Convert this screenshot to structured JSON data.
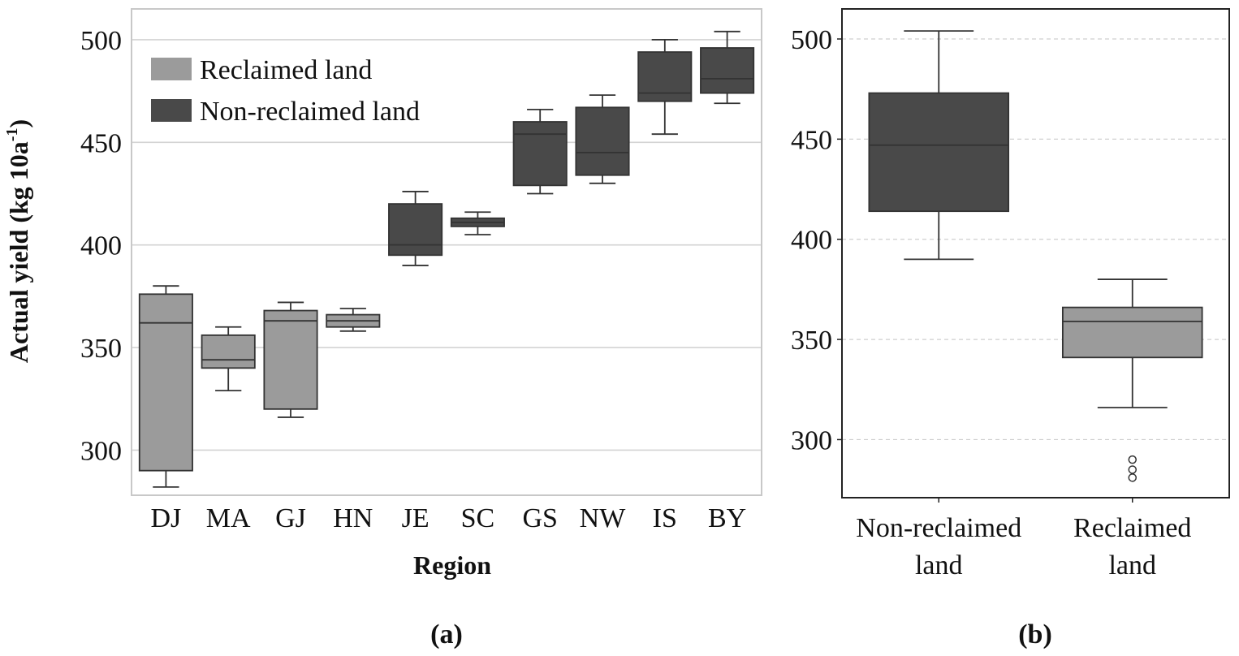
{
  "colors": {
    "reclaimed": "#9b9b9b",
    "non_reclaimed": "#494949",
    "box_stroke": "#333333",
    "grid_a": "#d3d3d3",
    "grid_b": "#cfcfcf",
    "frame_a": "#c8c8c8",
    "frame_b": "#222222"
  },
  "chart_data": [
    {
      "type": "box",
      "panel_label": "(a)",
      "xlabel": "Region",
      "ylabel": "Actual yield (kg 10a",
      "ylabel_superscript": "-1",
      "ylabel_close": ")",
      "ylim": [
        278,
        515
      ],
      "yticks": [
        300,
        350,
        400,
        450,
        500
      ],
      "grid": "horizontal solid",
      "legend": {
        "position": "top-left",
        "entries": [
          {
            "label": "Reclaimed land",
            "group": "reclaimed"
          },
          {
            "label": "Non-reclaimed land",
            "group": "non_reclaimed"
          }
        ]
      },
      "categories": [
        "DJ",
        "MA",
        "GJ",
        "HN",
        "JE",
        "SC",
        "GS",
        "NW",
        "IS",
        "BY"
      ],
      "boxes": [
        {
          "category": "DJ",
          "group": "reclaimed",
          "min": 282,
          "q1": 290,
          "median": 362,
          "q3": 376,
          "max": 380
        },
        {
          "category": "MA",
          "group": "reclaimed",
          "min": 329,
          "q1": 340,
          "median": 344,
          "q3": 356,
          "max": 360
        },
        {
          "category": "GJ",
          "group": "reclaimed",
          "min": 316,
          "q1": 320,
          "median": 363,
          "q3": 368,
          "max": 372
        },
        {
          "category": "HN",
          "group": "reclaimed",
          "min": 358,
          "q1": 360,
          "median": 363,
          "q3": 366,
          "max": 369
        },
        {
          "category": "JE",
          "group": "non_reclaimed",
          "min": 390,
          "q1": 395,
          "median": 400,
          "q3": 420,
          "max": 426
        },
        {
          "category": "SC",
          "group": "non_reclaimed",
          "min": 405,
          "q1": 409,
          "median": 411,
          "q3": 413,
          "max": 416
        },
        {
          "category": "GS",
          "group": "non_reclaimed",
          "min": 425,
          "q1": 429,
          "median": 454,
          "q3": 460,
          "max": 466
        },
        {
          "category": "NW",
          "group": "non_reclaimed",
          "min": 430,
          "q1": 434,
          "median": 445,
          "q3": 467,
          "max": 473
        },
        {
          "category": "IS",
          "group": "non_reclaimed",
          "min": 454,
          "q1": 470,
          "median": 474,
          "q3": 494,
          "max": 500
        },
        {
          "category": "BY",
          "group": "non_reclaimed",
          "min": 469,
          "q1": 474,
          "median": 481,
          "q3": 496,
          "max": 504
        }
      ]
    },
    {
      "type": "box",
      "panel_label": "(b)",
      "ylim": [
        271,
        515
      ],
      "yticks": [
        300,
        350,
        400,
        450,
        500
      ],
      "grid": "horizontal dashed",
      "categories": [
        {
          "line1": "Non-reclaimed",
          "line2": "land"
        },
        {
          "line1": "Reclaimed",
          "line2": "land"
        }
      ],
      "boxes": [
        {
          "group": "non_reclaimed",
          "min": 390,
          "q1": 414,
          "median": 447,
          "q3": 473,
          "max": 504,
          "outliers": []
        },
        {
          "group": "reclaimed",
          "min": 316,
          "q1": 341,
          "median": 359,
          "q3": 366,
          "max": 380,
          "outliers": [
            281,
            285,
            290
          ]
        }
      ]
    }
  ]
}
